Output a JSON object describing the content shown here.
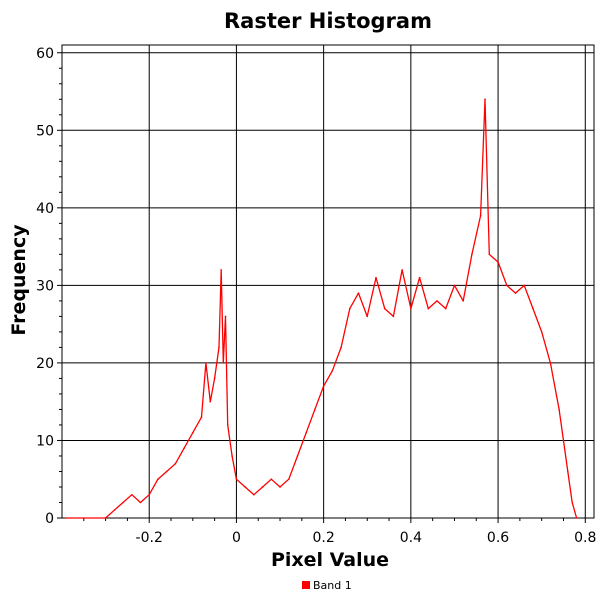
{
  "chart_data": {
    "type": "line",
    "title": "Raster Histogram",
    "xlabel": "Pixel Value",
    "ylabel": "Frequency",
    "xlim": [
      -0.4,
      0.82
    ],
    "ylim": [
      0,
      61
    ],
    "x_ticks": [
      -0.2,
      0,
      0.2,
      0.4,
      0.6,
      0.8
    ],
    "x_tick_labels": [
      "-0.2",
      "0",
      "0.2",
      "0.4",
      "0.6",
      "0.8"
    ],
    "y_ticks": [
      0,
      10,
      20,
      30,
      40,
      50,
      60
    ],
    "y_tick_labels": [
      "0",
      "10",
      "20",
      "30",
      "40",
      "50",
      "60"
    ],
    "grid": true,
    "legend_position": "bottom-center",
    "series": [
      {
        "name": "Band 1",
        "color": "#ff0000",
        "x": [
          -0.39,
          -0.35,
          -0.3,
          -0.28,
          -0.26,
          -0.24,
          -0.22,
          -0.2,
          -0.18,
          -0.16,
          -0.14,
          -0.12,
          -0.1,
          -0.08,
          -0.07,
          -0.06,
          -0.05,
          -0.04,
          -0.035,
          -0.03,
          -0.025,
          -0.02,
          -0.01,
          0,
          0.02,
          0.04,
          0.06,
          0.08,
          0.1,
          0.12,
          0.14,
          0.16,
          0.18,
          0.2,
          0.22,
          0.24,
          0.26,
          0.28,
          0.3,
          0.32,
          0.34,
          0.36,
          0.38,
          0.4,
          0.42,
          0.44,
          0.46,
          0.48,
          0.5,
          0.52,
          0.54,
          0.56,
          0.57,
          0.58,
          0.6,
          0.62,
          0.64,
          0.66,
          0.68,
          0.7,
          0.72,
          0.74,
          0.75,
          0.76,
          0.77,
          0.78
        ],
        "values": [
          0,
          0,
          0,
          1,
          2,
          3,
          2,
          3,
          5,
          6,
          7,
          9,
          11,
          13,
          20,
          15,
          18,
          22,
          32,
          20,
          26,
          12,
          8,
          5,
          4,
          3,
          4,
          5,
          4,
          5,
          8,
          11,
          14,
          17,
          19,
          22,
          27,
          29,
          26,
          31,
          27,
          26,
          32,
          27,
          31,
          27,
          28,
          27,
          30,
          28,
          34,
          39,
          54,
          34,
          33,
          30,
          29,
          30,
          27,
          24,
          20,
          14,
          10,
          6,
          2,
          0
        ]
      }
    ]
  }
}
